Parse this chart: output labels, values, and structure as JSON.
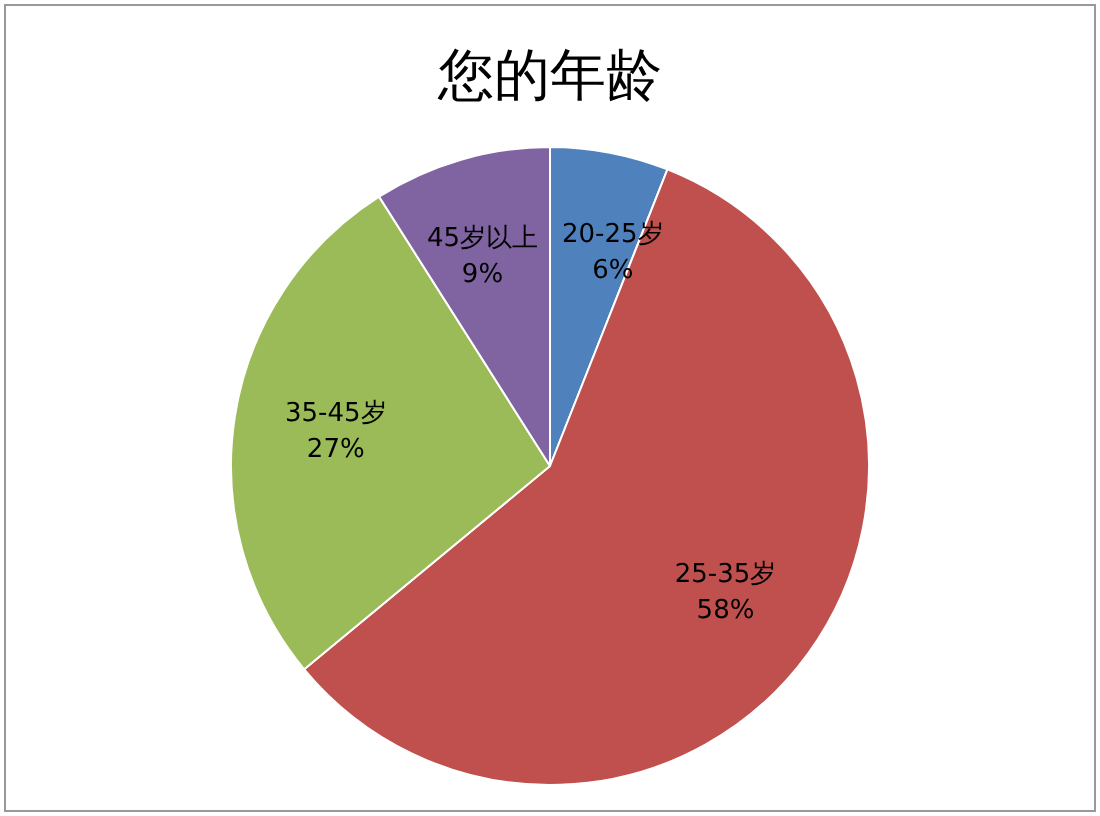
{
  "chart_data": {
    "type": "pie",
    "title": "您的年龄",
    "categories": [
      "20-25岁",
      "25-35岁",
      "35-45岁",
      "45岁以上"
    ],
    "values": [
      6,
      58,
      27,
      9
    ],
    "value_labels": [
      "6%",
      "58%",
      "27%",
      "9%"
    ],
    "colors": [
      "#4f81bd",
      "#c0504d",
      "#9bbb59",
      "#8064a2"
    ],
    "legend": false
  }
}
